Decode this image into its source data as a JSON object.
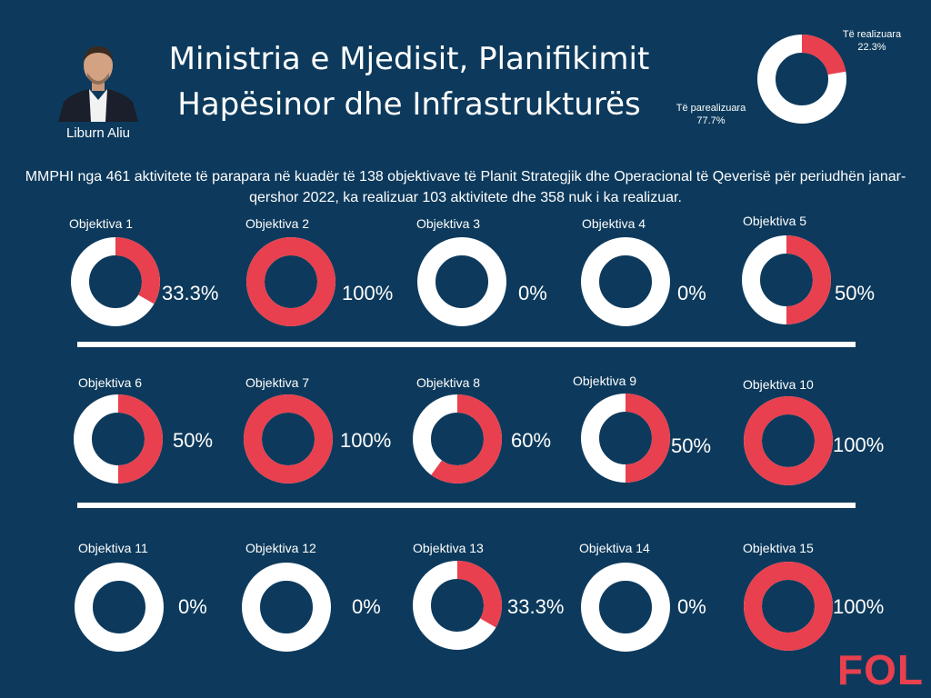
{
  "header": {
    "title_line1": "Ministria e Mjedisit, Planifikimit",
    "title_line2": "Hapësinor dhe Infrastrukturës",
    "person_name": "Liburn Aliu"
  },
  "summary_text": "MMPHI nga 461 aktivitete të parapara në kuadër të 138 objektivave të Planit Strategjik dhe Operacional të Qeverisë për periudhën janar-qershor 2022, ka realizuar 103 aktivitete dhe 358 nuk i ka realizuar.",
  "colors": {
    "background": "#0d3a5c",
    "realized": "#e8404e",
    "unrealized": "#ffffff",
    "logo": "#e8404e"
  },
  "logo": "FOL",
  "chart_data": [
    {
      "type": "pie",
      "slices": [
        {
          "label": "Të realizuara",
          "value": 22.3,
          "display": "22.3%"
        },
        {
          "label": "Të parealizuara",
          "value": 77.7,
          "display": "77.7%"
        }
      ]
    },
    {
      "type": "pie",
      "objectives": [
        {
          "label": "Objektiva 1",
          "value": 33.3,
          "display": "33.3%"
        },
        {
          "label": "Objektiva 2",
          "value": 100,
          "display": "100%"
        },
        {
          "label": "Objektiva 3",
          "value": 0,
          "display": "0%"
        },
        {
          "label": "Objektiva 4",
          "value": 0,
          "display": "0%"
        },
        {
          "label": "Objektiva 5",
          "value": 50,
          "display": "50%"
        },
        {
          "label": "Objektiva 6",
          "value": 50,
          "display": "50%"
        },
        {
          "label": "Objektiva 7",
          "value": 100,
          "display": "100%"
        },
        {
          "label": "Objektiva 8",
          "value": 60,
          "display": "60%"
        },
        {
          "label": "Objektiva 9",
          "value": 50,
          "display": "50%"
        },
        {
          "label": "Objektiva 10",
          "value": 100,
          "display": "100%"
        },
        {
          "label": "Objektiva 11",
          "value": 0,
          "display": "0%"
        },
        {
          "label": "Objektiva 12",
          "value": 0,
          "display": "0%"
        },
        {
          "label": "Objektiva 13",
          "value": 33.3,
          "display": "33.3%"
        },
        {
          "label": "Objektiva 14",
          "value": 0,
          "display": "0%"
        },
        {
          "label": "Objektiva 15",
          "value": 100,
          "display": "100%"
        }
      ]
    }
  ]
}
